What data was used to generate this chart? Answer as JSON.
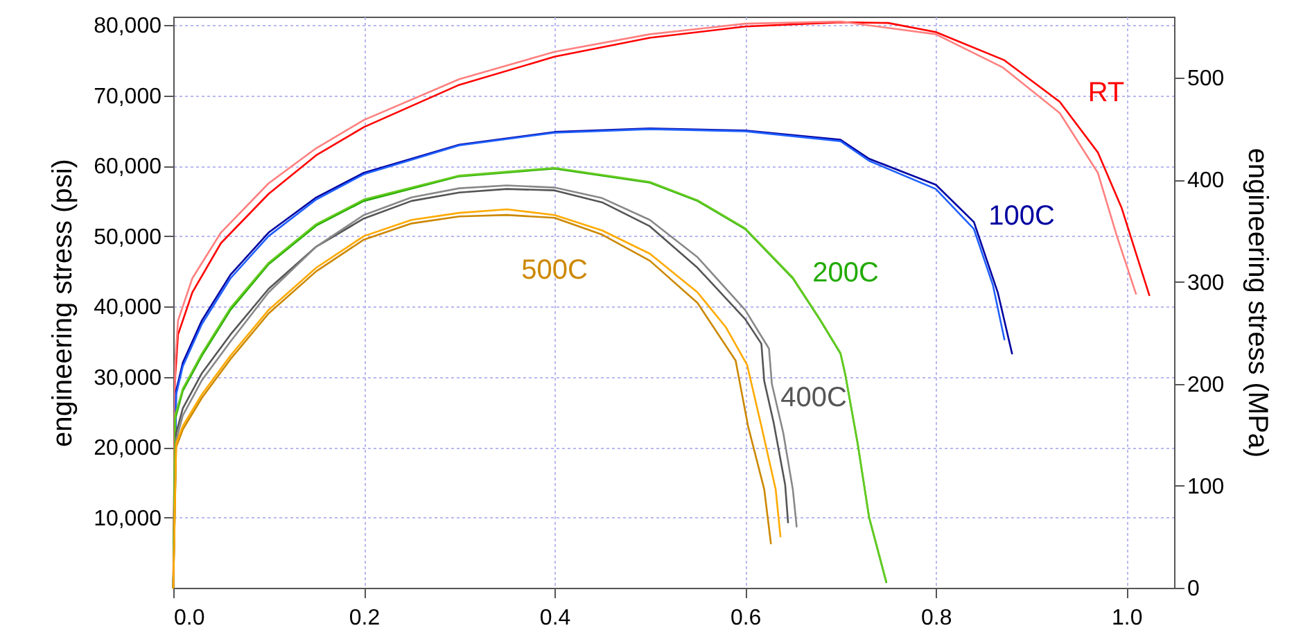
{
  "chart_data": {
    "type": "line",
    "ylabel": "engineering stress (psi)",
    "y2label": "engineering stress (MPa)",
    "xlim": [
      0,
      1.05
    ],
    "xticks": [
      {
        "value": 0,
        "label": "0.0"
      },
      {
        "value": 0.2,
        "label": "0.2"
      },
      {
        "value": 0.4,
        "label": "0.4"
      },
      {
        "value": 0.6,
        "label": "0.6"
      },
      {
        "value": 0.8,
        "label": "0.8"
      },
      {
        "value": 1,
        "label": "1.0"
      }
    ],
    "ylim": [
      0,
      81200
    ],
    "yticks": [
      {
        "value": 10000,
        "label": "10,000"
      },
      {
        "value": 20000,
        "label": "20,000"
      },
      {
        "value": 30000,
        "label": "30,000"
      },
      {
        "value": 40000,
        "label": "40,000"
      },
      {
        "value": 50000,
        "label": "50,000"
      },
      {
        "value": 60000,
        "label": "60,000"
      },
      {
        "value": 70000,
        "label": "70,000"
      },
      {
        "value": 80000,
        "label": "80,000"
      }
    ],
    "y2lim": [
      0,
      560
    ],
    "y2ticks": [
      0,
      100,
      200,
      300,
      400,
      500
    ],
    "grid": true,
    "line_style": "solid",
    "marker": "none",
    "series": [
      {
        "name": "RT",
        "color": "#ff0000",
        "x": [
          0,
          0.002,
          0.005,
          0.02,
          0.05,
          0.1,
          0.15,
          0.2,
          0.3,
          0.4,
          0.5,
          0.6,
          0.7,
          0.75,
          0.8,
          0.872,
          0.93,
          0.97,
          0.995,
          1.024
        ],
        "values": [
          0,
          30000,
          36000,
          42000,
          49000,
          56000,
          61500,
          65500,
          71500,
          75500,
          78200,
          79800,
          80400,
          80300,
          79000,
          75000,
          69100,
          61900,
          54000,
          41600
        ]
      },
      {
        "color": "#ff8080",
        "x": [
          0,
          0.002,
          0.005,
          0.02,
          0.05,
          0.1,
          0.15,
          0.2,
          0.3,
          0.4,
          0.5,
          0.6,
          0.7,
          0.8,
          0.87,
          0.93,
          0.97,
          0.99,
          1.01
        ],
        "values": [
          0,
          32000,
          38000,
          44000,
          50500,
          57500,
          62500,
          66500,
          72300,
          76200,
          78700,
          80200,
          80500,
          78700,
          74000,
          67500,
          59000,
          50000,
          41800
        ]
      },
      {
        "name": "100C",
        "color": "#0000a0",
        "x": [
          0,
          0.003,
          0.01,
          0.03,
          0.06,
          0.1,
          0.15,
          0.2,
          0.3,
          0.4,
          0.5,
          0.6,
          0.7,
          0.73,
          0.8,
          0.84,
          0.865,
          0.88
        ],
        "values": [
          0,
          28000,
          32000,
          38000,
          44500,
          50500,
          55500,
          59000,
          63000,
          64800,
          65300,
          65000,
          63700,
          61000,
          57300,
          52000,
          42000,
          33300
        ]
      },
      {
        "color": "#2060ff",
        "x": [
          0,
          0.003,
          0.01,
          0.03,
          0.06,
          0.1,
          0.15,
          0.2,
          0.3,
          0.4,
          0.5,
          0.6,
          0.7,
          0.73,
          0.8,
          0.84,
          0.86,
          0.872
        ],
        "values": [
          0,
          27500,
          31500,
          37500,
          44000,
          50000,
          55200,
          58800,
          62900,
          64700,
          65200,
          64900,
          63500,
          60700,
          56700,
          51000,
          43000,
          35300
        ]
      },
      {
        "name": "200C",
        "color": "#22aa00",
        "x": [
          0,
          0.002,
          0.01,
          0.03,
          0.06,
          0.1,
          0.15,
          0.2,
          0.3,
          0.4,
          0.5,
          0.55,
          0.6,
          0.65,
          0.678,
          0.7,
          0.705,
          0.718,
          0.73,
          0.748
        ],
        "values": [
          0,
          24000,
          28000,
          33000,
          39500,
          46000,
          51500,
          55000,
          58500,
          59600,
          57600,
          55000,
          51000,
          44000,
          38200,
          33300,
          30300,
          20500,
          10000,
          800
        ]
      },
      {
        "color": "#66cc22",
        "x": [
          0,
          0.002,
          0.01,
          0.03,
          0.06,
          0.1,
          0.15,
          0.2,
          0.3,
          0.4,
          0.5,
          0.55,
          0.6,
          0.65,
          0.678,
          0.7,
          0.705,
          0.718,
          0.73,
          0.748
        ],
        "values": [
          0,
          24500,
          28300,
          33300,
          39800,
          46200,
          51700,
          55200,
          58600,
          59700,
          57700,
          55100,
          51100,
          44100,
          38300,
          33400,
          30400,
          20600,
          10100,
          900
        ]
      },
      {
        "name": "400C",
        "color": "#555555",
        "x": [
          0,
          0.003,
          0.01,
          0.03,
          0.06,
          0.1,
          0.15,
          0.2,
          0.25,
          0.3,
          0.35,
          0.4,
          0.45,
          0.5,
          0.55,
          0.6,
          0.617,
          0.62,
          0.63,
          0.642,
          0.645
        ],
        "values": [
          0,
          22000,
          25500,
          30500,
          36000,
          42500,
          48500,
          52500,
          55000,
          56200,
          56700,
          56500,
          54800,
          51400,
          45500,
          38200,
          34700,
          29400,
          23400,
          14600,
          9300
        ]
      },
      {
        "color": "#888888",
        "x": [
          0,
          0.003,
          0.01,
          0.03,
          0.06,
          0.1,
          0.15,
          0.2,
          0.25,
          0.3,
          0.35,
          0.4,
          0.45,
          0.5,
          0.55,
          0.6,
          0.625,
          0.628,
          0.64,
          0.65,
          0.654
        ],
        "values": [
          0,
          21000,
          24500,
          29500,
          35000,
          42000,
          48500,
          53000,
          55500,
          56800,
          57200,
          56900,
          55400,
          52300,
          47000,
          39500,
          34000,
          29000,
          22000,
          14000,
          8700
        ]
      },
      {
        "name": "500C",
        "color": "#cc8800",
        "x": [
          0,
          0.003,
          0.01,
          0.03,
          0.06,
          0.1,
          0.15,
          0.2,
          0.25,
          0.3,
          0.35,
          0.4,
          0.45,
          0.5,
          0.55,
          0.59,
          0.603,
          0.62,
          0.627
        ],
        "values": [
          0,
          20000,
          22500,
          27000,
          32500,
          39000,
          45000,
          49500,
          51800,
          52800,
          53000,
          52600,
          50200,
          46500,
          40500,
          32300,
          23000,
          14000,
          6300
        ]
      },
      {
        "color": "#ffaa00",
        "x": [
          0,
          0.003,
          0.01,
          0.03,
          0.06,
          0.1,
          0.15,
          0.2,
          0.25,
          0.3,
          0.35,
          0.4,
          0.45,
          0.5,
          0.55,
          0.58,
          0.602,
          0.617,
          0.632,
          0.637
        ],
        "values": [
          0,
          20500,
          23000,
          27500,
          33000,
          39500,
          45500,
          50000,
          52300,
          53300,
          53800,
          53000,
          50800,
          47500,
          42000,
          37000,
          31700,
          23000,
          14000,
          7300
        ]
      }
    ]
  }
}
